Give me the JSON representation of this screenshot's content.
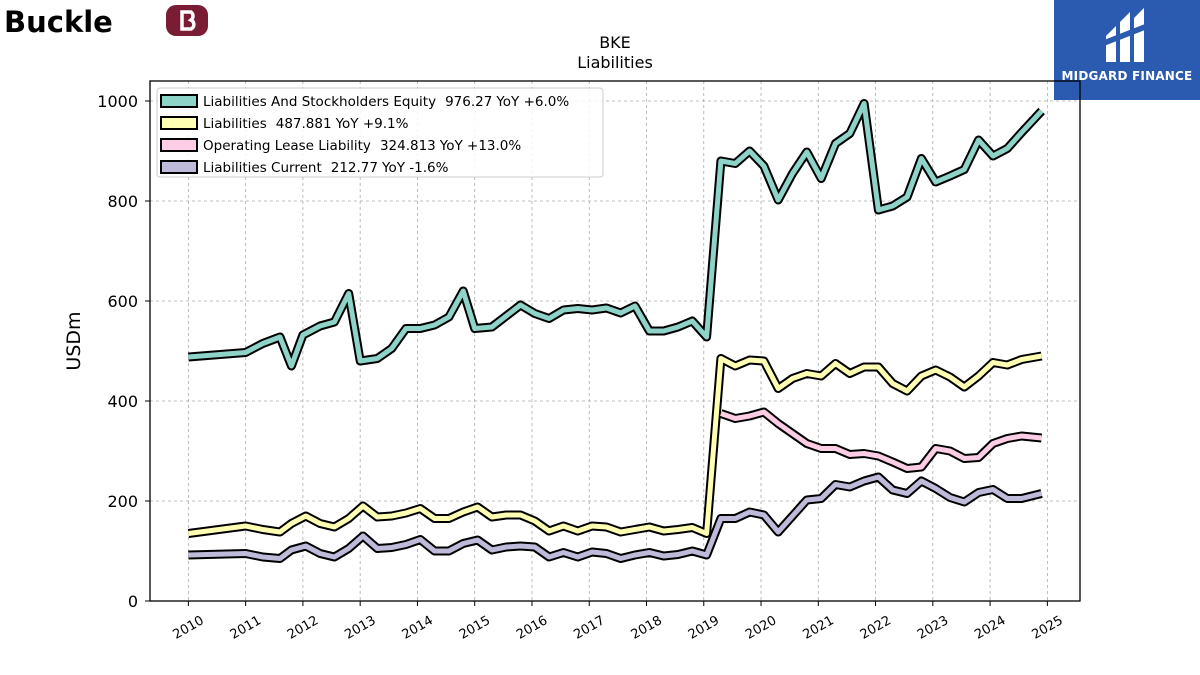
{
  "brand": {
    "left_logo_text": "Buckle",
    "right_logo_text": "MIDGARD FINANCE",
    "left_logo_color": "#000000",
    "left_badge_color": "#7a1d34",
    "right_logo_bg": "#2b5bb0"
  },
  "chart_data": {
    "type": "line",
    "title": "BKE",
    "subtitle": "Liabilities",
    "ylabel": "USDm",
    "xlabel": "",
    "ylim": [
      0,
      1040
    ],
    "xlim": [
      2009.33,
      2025.57
    ],
    "yticks": [
      0,
      200,
      400,
      600,
      800,
      1000
    ],
    "xticks": [
      2010,
      2011,
      2012,
      2013,
      2014,
      2015,
      2016,
      2017,
      2018,
      2019,
      2020,
      2021,
      2022,
      2023,
      2024,
      2025
    ],
    "grid": true,
    "legend_position": "top-left",
    "series": [
      {
        "name": "Liabilities And Stockholders Equity",
        "legend_value": "976.27",
        "legend_change": "YoY +6.0%",
        "color": "#8dd3c7",
        "x": [
          2010.0,
          2011.0,
          2011.3,
          2011.6,
          2011.8,
          2012.0,
          2012.3,
          2012.55,
          2012.8,
          2013.0,
          2013.3,
          2013.55,
          2013.8,
          2014.05,
          2014.3,
          2014.55,
          2014.8,
          2015.0,
          2015.3,
          2015.55,
          2015.8,
          2016.05,
          2016.3,
          2016.55,
          2016.8,
          2017.05,
          2017.3,
          2017.55,
          2017.8,
          2018.05,
          2018.3,
          2018.55,
          2018.8,
          2019.05,
          2019.3,
          2019.55,
          2019.8,
          2020.05,
          2020.3,
          2020.55,
          2020.8,
          2021.05,
          2021.3,
          2021.55,
          2021.8,
          2022.05,
          2022.3,
          2022.55,
          2022.8,
          2023.05,
          2023.3,
          2023.55,
          2023.8,
          2024.05,
          2024.3,
          2024.55,
          2024.9
        ],
        "values": [
          488,
          497,
          515,
          528,
          470,
          532,
          550,
          558,
          615,
          480,
          485,
          505,
          545,
          545,
          552,
          568,
          620,
          545,
          548,
          570,
          592,
          575,
          565,
          582,
          585,
          582,
          586,
          576,
          590,
          540,
          540,
          548,
          560,
          528,
          880,
          875,
          900,
          870,
          802,
          855,
          898,
          845,
          915,
          935,
          995,
          782,
          790,
          808,
          885,
          838,
          850,
          863,
          922,
          890,
          905,
          937,
          980
        ]
      },
      {
        "name": "Liabilities",
        "legend_value": "487.881",
        "legend_change": "YoY +9.1%",
        "color": "#ffffb3",
        "x": [
          2010.0,
          2011.0,
          2011.3,
          2011.6,
          2011.8,
          2012.05,
          2012.3,
          2012.55,
          2012.8,
          2013.05,
          2013.3,
          2013.55,
          2013.8,
          2014.05,
          2014.3,
          2014.55,
          2014.8,
          2015.05,
          2015.3,
          2015.55,
          2015.8,
          2016.05,
          2016.3,
          2016.55,
          2016.8,
          2017.05,
          2017.3,
          2017.55,
          2017.8,
          2018.05,
          2018.3,
          2018.55,
          2018.8,
          2019.05,
          2019.3,
          2019.55,
          2019.8,
          2020.05,
          2020.3,
          2020.55,
          2020.8,
          2021.05,
          2021.3,
          2021.55,
          2021.8,
          2022.05,
          2022.3,
          2022.55,
          2022.8,
          2023.05,
          2023.3,
          2023.55,
          2023.8,
          2024.05,
          2024.3,
          2024.55,
          2024.9
        ],
        "values": [
          135,
          150,
          143,
          138,
          155,
          170,
          155,
          148,
          165,
          190,
          168,
          170,
          176,
          185,
          165,
          165,
          178,
          188,
          168,
          172,
          172,
          160,
          140,
          150,
          140,
          150,
          148,
          138,
          143,
          148,
          140,
          143,
          147,
          135,
          485,
          470,
          482,
          480,
          425,
          445,
          455,
          450,
          475,
          455,
          468,
          468,
          435,
          420,
          450,
          462,
          448,
          428,
          450,
          477,
          472,
          483,
          490
        ]
      },
      {
        "name": "Operating Lease Liability",
        "legend_value": "324.813",
        "legend_change": "YoY +13.0%",
        "color": "#fccde5",
        "x": [
          2019.3,
          2019.55,
          2019.8,
          2020.05,
          2020.3,
          2020.55,
          2020.8,
          2021.05,
          2021.3,
          2021.55,
          2021.8,
          2022.05,
          2022.3,
          2022.55,
          2022.8,
          2023.05,
          2023.3,
          2023.55,
          2023.8,
          2024.05,
          2024.3,
          2024.55,
          2024.9
        ],
        "values": [
          375,
          365,
          370,
          378,
          355,
          335,
          315,
          305,
          305,
          293,
          295,
          290,
          278,
          265,
          268,
          305,
          300,
          285,
          287,
          315,
          325,
          330,
          326
        ]
      },
      {
        "name": "Liabilities Current",
        "legend_value": "212.77",
        "legend_change": "YoY -1.6%",
        "color": "#bebada",
        "x": [
          2010.0,
          2011.0,
          2011.3,
          2011.6,
          2011.8,
          2012.05,
          2012.3,
          2012.55,
          2012.8,
          2013.05,
          2013.3,
          2013.55,
          2013.8,
          2014.05,
          2014.3,
          2014.55,
          2014.8,
          2015.05,
          2015.3,
          2015.55,
          2015.8,
          2016.05,
          2016.3,
          2016.55,
          2016.8,
          2017.05,
          2017.3,
          2017.55,
          2017.8,
          2018.05,
          2018.3,
          2018.55,
          2018.8,
          2019.05,
          2019.3,
          2019.55,
          2019.8,
          2020.05,
          2020.3,
          2020.55,
          2020.8,
          2021.05,
          2021.3,
          2021.55,
          2021.8,
          2022.05,
          2022.3,
          2022.55,
          2022.8,
          2023.05,
          2023.3,
          2023.55,
          2023.8,
          2024.05,
          2024.3,
          2024.55,
          2024.9
        ],
        "values": [
          92,
          95,
          88,
          85,
          102,
          110,
          95,
          88,
          105,
          130,
          105,
          107,
          113,
          123,
          100,
          100,
          115,
          122,
          102,
          108,
          110,
          108,
          88,
          97,
          88,
          98,
          95,
          85,
          92,
          97,
          90,
          93,
          100,
          92,
          165,
          165,
          178,
          172,
          138,
          170,
          202,
          205,
          233,
          228,
          240,
          248,
          222,
          215,
          240,
          225,
          207,
          198,
          217,
          223,
          205,
          205,
          215
        ]
      }
    ]
  }
}
